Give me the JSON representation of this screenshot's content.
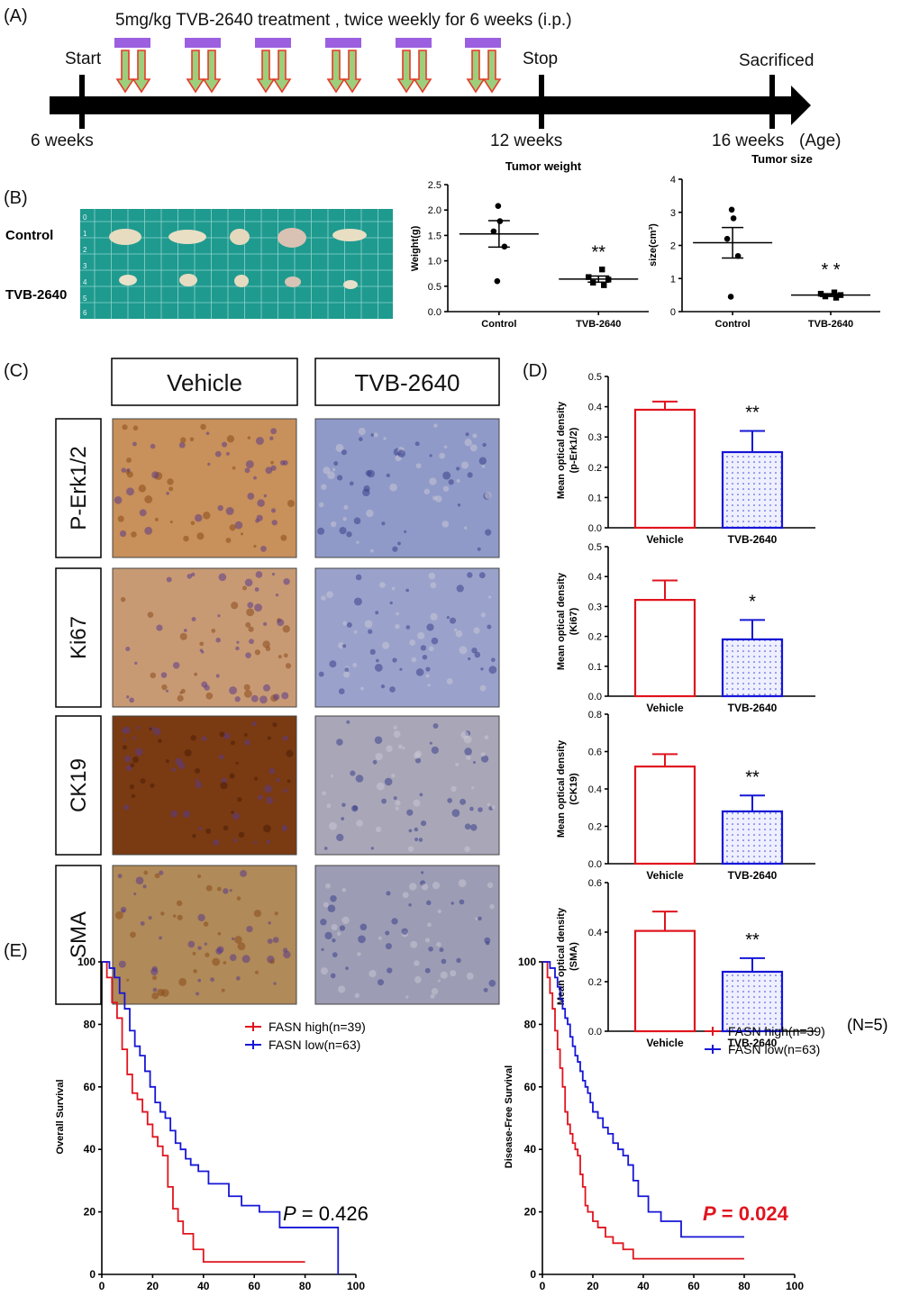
{
  "panel_labels": {
    "a": "(A)",
    "b": "(B)",
    "c": "(C)",
    "d": "(D)",
    "e": "(E)"
  },
  "timeline": {
    "treatment_text": "5mg/kg TVB-2640 treatment , twice weekly for 6 weeks (i.p.)",
    "events": [
      {
        "label": "Start",
        "age": "6 weeks",
        "week": 6
      },
      {
        "label": "Stop",
        "age": "12 weeks",
        "week": 12
      },
      {
        "label": "Sacrificed",
        "age": "16 weeks",
        "week": 16
      }
    ],
    "age_unit": "(Age)",
    "doses": 6,
    "colors": {
      "bar": "#9b5fe0",
      "arrow_red": "#e53b2a",
      "arrow_green": "#9ccf7c"
    }
  },
  "photo": {
    "rows": [
      {
        "label": "Control",
        "pieces": 5
      },
      {
        "label": "TVB-2640",
        "pieces": 5
      }
    ],
    "ruler_ticks": [
      "0",
      "1",
      "2",
      "3",
      "4",
      "5",
      "6"
    ],
    "board_color": "#1f9a8f"
  },
  "histology": {
    "columns": [
      "Vehicle",
      "TVB-2640"
    ],
    "rows": [
      "P-Erk1/2",
      "Ki67",
      "CK19",
      "SMA"
    ]
  },
  "chart_data": [
    {
      "id": "tumor-weight",
      "type": "scatter",
      "title": "Tumor weight",
      "ylabel": "Weight(g)",
      "categories": [
        "Control",
        "TVB-2640"
      ],
      "ylim": [
        0,
        2.5
      ],
      "yticks": [
        "0.0",
        "0.5",
        "1.0",
        "1.5",
        "2.0",
        "2.5"
      ],
      "points": [
        [
          2.08,
          1.78,
          1.58,
          1.28,
          0.6
        ],
        [
          0.83,
          0.68,
          0.63,
          0.57,
          0.52
        ]
      ],
      "mean": [
        1.53,
        0.64
      ],
      "sem": [
        0.26,
        0.06
      ],
      "significance": [
        "",
        "**"
      ]
    },
    {
      "id": "tumor-size",
      "type": "scatter",
      "title": "Tumor size",
      "ylabel": "size(cm³)",
      "categories": [
        "Control",
        "TVB-2640"
      ],
      "ylim": [
        0,
        4
      ],
      "yticks": [
        "0",
        "1",
        "2",
        "3",
        "4"
      ],
      "points": [
        [
          3.08,
          2.82,
          2.2,
          1.68,
          0.45
        ],
        [
          0.58,
          0.54,
          0.5,
          0.46,
          0.42
        ]
      ],
      "mean": [
        2.08,
        0.5
      ],
      "sem": [
        0.46,
        0.04
      ],
      "significance": [
        "",
        "* *"
      ]
    },
    {
      "id": "od-perk",
      "type": "bar",
      "ylabel": "Mean optical density",
      "ylabel2": "(p-Erk1/2)",
      "categories": [
        "Vehicle",
        "TVB-2640"
      ],
      "values": [
        0.39,
        0.25
      ],
      "errors": [
        0.027,
        0.07
      ],
      "ylim": [
        0,
        0.5
      ],
      "yticks": [
        "0.0",
        "0.1",
        "0.2",
        "0.3",
        "0.4",
        "0.5"
      ],
      "significance": [
        "",
        "**"
      ]
    },
    {
      "id": "od-ki67",
      "type": "bar",
      "ylabel": "Mean optical density",
      "ylabel2": "(Ki67)",
      "categories": [
        "Vehicle",
        "TVB-2640"
      ],
      "values": [
        0.322,
        0.19
      ],
      "errors": [
        0.065,
        0.065
      ],
      "ylim": [
        0,
        0.5
      ],
      "yticks": [
        "0.0",
        "0.1",
        "0.2",
        "0.3",
        "0.4",
        "0.5"
      ],
      "significance": [
        "",
        "*"
      ]
    },
    {
      "id": "od-ck19",
      "type": "bar",
      "ylabel": "Mean optical density",
      "ylabel2": "(CK19)",
      "categories": [
        "Vehicle",
        "TVB-2640"
      ],
      "values": [
        0.52,
        0.28
      ],
      "errors": [
        0.066,
        0.085
      ],
      "ylim": [
        0,
        0.8
      ],
      "yticks": [
        "0.0",
        "0.2",
        "0.4",
        "0.6",
        "0.8"
      ],
      "significance": [
        "",
        "**"
      ]
    },
    {
      "id": "od-sma",
      "type": "bar",
      "ylabel": "Mean optical density",
      "ylabel2": "(SMA)",
      "categories": [
        "Vehicle",
        "TVB-2640"
      ],
      "values": [
        0.405,
        0.24
      ],
      "errors": [
        0.078,
        0.055
      ],
      "ylim": [
        0,
        0.6
      ],
      "yticks": [
        "0.0",
        "0.2",
        "0.4",
        "0.6"
      ],
      "significance": [
        "",
        "**"
      ]
    },
    {
      "id": "km-os",
      "type": "line",
      "ylabel": "Overall Survival",
      "xlim": [
        0,
        100
      ],
      "ylim": [
        0,
        100
      ],
      "xticks": [
        "0",
        "20",
        "40",
        "60",
        "80",
        "100"
      ],
      "yticks": [
        "0",
        "20",
        "40",
        "60",
        "80",
        "100"
      ],
      "p_label": "P",
      "p_value": "= 0.426",
      "p_color": "#000000",
      "series": [
        {
          "name": "FASN high(n=39)",
          "color": "#e0141e",
          "x": [
            0,
            2,
            4,
            6,
            8,
            10,
            12,
            14,
            16,
            18,
            20,
            22,
            24,
            26,
            28,
            30,
            32,
            36,
            40,
            48,
            80
          ],
          "y": [
            100,
            95,
            87,
            82,
            72,
            64,
            58,
            56,
            52,
            48,
            44,
            41,
            38,
            28,
            21,
            17,
            13,
            8,
            4,
            4,
            4
          ]
        },
        {
          "name": "FASN low(n=63)",
          "color": "#1616d6",
          "x": [
            0,
            3,
            5,
            7,
            9,
            11,
            13,
            15,
            17,
            19,
            21,
            23,
            25,
            27,
            29,
            31,
            33,
            35,
            38,
            42,
            50,
            55,
            62,
            70,
            80,
            92,
            93
          ],
          "y": [
            100,
            98,
            95,
            90,
            85,
            78,
            73,
            70,
            65,
            60,
            55,
            52,
            50,
            46,
            42,
            40,
            37,
            35,
            33,
            29,
            25,
            22,
            20,
            15,
            15,
            15,
            0
          ]
        }
      ]
    },
    {
      "id": "km-dfs",
      "type": "line",
      "ylabel": "Disease-Free Survival",
      "xlim": [
        0,
        100
      ],
      "ylim": [
        0,
        100
      ],
      "xticks": [
        "0",
        "20",
        "40",
        "60",
        "80",
        "100"
      ],
      "yticks": [
        "0",
        "20",
        "40",
        "60",
        "80",
        "100"
      ],
      "p_label": "P",
      "p_value": "= 0.024",
      "p_color": "#e0141e",
      "series": [
        {
          "name": "FASN high(n=39)",
          "color": "#e0141e",
          "x": [
            0,
            2,
            3,
            4,
            5,
            6,
            7,
            8,
            9,
            10,
            11,
            12,
            13,
            14,
            15,
            16,
            17,
            18,
            20,
            22,
            25,
            28,
            32,
            36,
            40,
            80
          ],
          "y": [
            100,
            95,
            90,
            85,
            78,
            72,
            66,
            60,
            52,
            48,
            45,
            42,
            40,
            38,
            32,
            28,
            22,
            20,
            17,
            15,
            12,
            10,
            8,
            5,
            5,
            5
          ]
        },
        {
          "name": "FASN low(n=63)",
          "color": "#1616d6",
          "x": [
            0,
            3,
            5,
            6,
            7,
            8,
            9,
            10,
            11,
            12,
            13,
            14,
            15,
            16,
            17,
            18,
            19,
            20,
            22,
            24,
            26,
            28,
            30,
            32,
            34,
            36,
            38,
            42,
            47,
            55,
            65,
            80
          ],
          "y": [
            100,
            98,
            95,
            92,
            88,
            85,
            82,
            80,
            76,
            73,
            70,
            68,
            65,
            62,
            60,
            58,
            55,
            52,
            50,
            47,
            45,
            42,
            40,
            38,
            35,
            30,
            25,
            20,
            17,
            12,
            12,
            12
          ]
        }
      ]
    }
  ],
  "n_note": "(N=5)"
}
